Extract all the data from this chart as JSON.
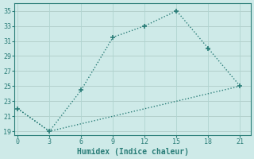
{
  "line1_x": [
    0,
    3,
    6,
    9,
    12,
    15,
    18,
    21
  ],
  "line1_y": [
    22,
    19,
    24.5,
    31.5,
    33,
    35,
    30,
    25
  ],
  "line2_x": [
    0,
    3,
    21
  ],
  "line2_y": [
    22,
    19,
    25
  ],
  "color": "#2a7d78",
  "bg_color": "#ceeae8",
  "grid_color": "#afd4d0",
  "xlabel": "Humidex (Indice chaleur)",
  "ylim": [
    18.5,
    36
  ],
  "yticks": [
    19,
    21,
    23,
    25,
    27,
    29,
    31,
    33,
    35
  ],
  "xticks": [
    0,
    3,
    6,
    9,
    12,
    15,
    18,
    21
  ],
  "xlim": [
    -0.3,
    22
  ],
  "marker": "+",
  "markersize": 5,
  "linewidth": 1.0,
  "linestyle": ":"
}
